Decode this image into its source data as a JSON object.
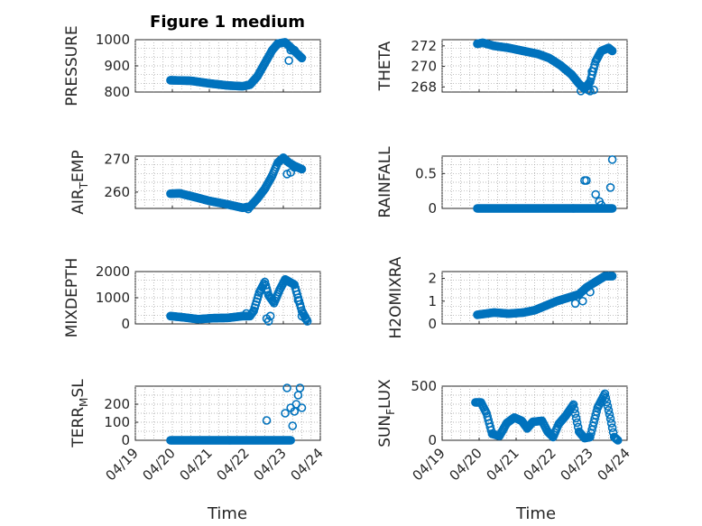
{
  "figure": {
    "title": "Figure 1 medium",
    "xlabel": "Time",
    "xticks": [
      "04/19",
      "04/20",
      "04/21",
      "04/22",
      "04/23",
      "04/24"
    ]
  },
  "chart_data": [
    {
      "type": "scatter",
      "ylabel": "PRESSURE",
      "ylim": [
        800,
        1000
      ],
      "yticks": [
        800,
        900,
        1000
      ],
      "ytick_labels": [
        "800",
        "900",
        "1000"
      ],
      "xlim": [
        0,
        5
      ],
      "grid": true,
      "marker_color": "#0072BD",
      "anchors": [
        [
          0.95,
          845
        ],
        [
          1.5,
          843
        ],
        [
          2.0,
          833
        ],
        [
          2.5,
          825
        ],
        [
          2.9,
          822
        ],
        [
          3.1,
          828
        ],
        [
          3.3,
          860
        ],
        [
          3.5,
          910
        ],
        [
          3.7,
          960
        ],
        [
          3.85,
          985
        ],
        [
          4.05,
          990
        ],
        [
          4.2,
          970
        ],
        [
          4.35,
          950
        ],
        [
          4.5,
          930
        ]
      ],
      "extra": [
        [
          4.15,
          920
        ],
        [
          4.2,
          960
        ],
        [
          4.3,
          960
        ]
      ]
    },
    {
      "type": "scatter",
      "ylabel": "THETA",
      "ylim": [
        267.5,
        272.6
      ],
      "yticks": [
        268,
        270,
        272
      ],
      "ytick_labels": [
        "268",
        "270",
        "272"
      ],
      "xlim": [
        0,
        5
      ],
      "grid": true,
      "marker_color": "#0072BD",
      "anchors": [
        [
          0.95,
          272.2
        ],
        [
          1.1,
          272.3
        ],
        [
          1.4,
          272.0
        ],
        [
          1.8,
          271.8
        ],
        [
          2.2,
          271.5
        ],
        [
          2.6,
          271.2
        ],
        [
          2.9,
          270.8
        ],
        [
          3.2,
          270.1
        ],
        [
          3.5,
          269.2
        ],
        [
          3.7,
          268.3
        ],
        [
          3.85,
          267.8
        ],
        [
          4.0,
          268.5
        ],
        [
          4.15,
          270.5
        ],
        [
          4.3,
          271.5
        ],
        [
          4.5,
          271.8
        ],
        [
          4.6,
          271.5
        ]
      ],
      "extra": [
        [
          3.75,
          267.6
        ],
        [
          3.9,
          268.1
        ],
        [
          3.95,
          267.7
        ],
        [
          4.0,
          267.6
        ],
        [
          4.05,
          269.5
        ],
        [
          4.1,
          267.7
        ]
      ]
    },
    {
      "type": "scatter",
      "ylabel": "AIR_TEMP",
      "ylabel_parts": [
        "AIR",
        "T",
        "EMP"
      ],
      "ylim": [
        255,
        271
      ],
      "yticks": [
        260,
        270
      ],
      "ytick_labels": [
        "260",
        "270"
      ],
      "xlim": [
        0,
        5
      ],
      "grid": true,
      "marker_color": "#0072BD",
      "anchors": [
        [
          0.95,
          259.5
        ],
        [
          1.2,
          259.6
        ],
        [
          1.6,
          258.5
        ],
        [
          2.0,
          257.3
        ],
        [
          2.5,
          256.2
        ],
        [
          2.9,
          255.2
        ],
        [
          3.1,
          255.5
        ],
        [
          3.3,
          258
        ],
        [
          3.5,
          261
        ],
        [
          3.7,
          265
        ],
        [
          3.85,
          269
        ],
        [
          4.0,
          270.5
        ],
        [
          4.15,
          269
        ],
        [
          4.3,
          268
        ],
        [
          4.5,
          267
        ]
      ],
      "extra": [
        [
          3.05,
          254.8
        ],
        [
          4.1,
          265.5
        ],
        [
          4.2,
          266
        ],
        [
          4.3,
          267.5
        ]
      ]
    },
    {
      "type": "scatter",
      "ylabel": "RAINFALL",
      "ylim": [
        0,
        0.75
      ],
      "yticks": [
        0,
        0.5
      ],
      "ytick_labels": [
        "0",
        "0.5"
      ],
      "xlim": [
        0,
        5
      ],
      "grid": true,
      "marker_color": "#0072BD",
      "anchors": [
        [
          0.95,
          0
        ],
        [
          4.6,
          0
        ]
      ],
      "extra": [
        [
          3.85,
          0.4
        ],
        [
          3.9,
          0.4
        ],
        [
          4.15,
          0.2
        ],
        [
          4.25,
          0.1
        ],
        [
          4.3,
          0.05
        ],
        [
          4.55,
          0.3
        ],
        [
          4.6,
          0.7
        ]
      ]
    },
    {
      "type": "scatter",
      "ylabel": "MIXDEPTH",
      "ylim": [
        0,
        2000
      ],
      "yticks": [
        0,
        1000,
        2000
      ],
      "ytick_labels": [
        "0",
        "1000",
        "2000"
      ],
      "xlim": [
        0,
        5
      ],
      "grid": true,
      "marker_color": "#0072BD",
      "anchors": [
        [
          0.95,
          300
        ],
        [
          1.3,
          250
        ],
        [
          1.7,
          180
        ],
        [
          2.1,
          220
        ],
        [
          2.5,
          230
        ],
        [
          2.9,
          300
        ],
        [
          3.1,
          300
        ],
        [
          3.2,
          500
        ],
        [
          3.35,
          1200
        ],
        [
          3.5,
          1600
        ],
        [
          3.6,
          1100
        ],
        [
          3.75,
          800
        ],
        [
          3.9,
          1300
        ],
        [
          4.05,
          1700
        ],
        [
          4.3,
          1500
        ],
        [
          4.5,
          500
        ],
        [
          4.65,
          100
        ]
      ],
      "extra": [
        [
          3.0,
          400
        ],
        [
          3.55,
          200
        ],
        [
          3.6,
          100
        ],
        [
          3.65,
          300
        ],
        [
          4.4,
          900
        ],
        [
          4.5,
          300
        ],
        [
          4.6,
          200
        ]
      ]
    },
    {
      "type": "scatter",
      "ylabel": "H2OMIXRA",
      "ylim": [
        0,
        2.3
      ],
      "yticks": [
        0,
        1,
        2
      ],
      "ytick_labels": [
        "0",
        "1",
        "2"
      ],
      "xlim": [
        0,
        5
      ],
      "grid": true,
      "marker_color": "#0072BD",
      "anchors": [
        [
          0.95,
          0.4
        ],
        [
          1.4,
          0.5
        ],
        [
          1.8,
          0.45
        ],
        [
          2.2,
          0.5
        ],
        [
          2.5,
          0.6
        ],
        [
          2.8,
          0.8
        ],
        [
          3.1,
          1.0
        ],
        [
          3.4,
          1.15
        ],
        [
          3.7,
          1.3
        ],
        [
          3.9,
          1.6
        ],
        [
          4.2,
          1.9
        ],
        [
          4.4,
          2.1
        ],
        [
          4.6,
          2.1
        ]
      ],
      "extra": [
        [
          3.6,
          0.9
        ],
        [
          3.8,
          1.0
        ],
        [
          4.0,
          1.4
        ]
      ]
    },
    {
      "type": "scatter",
      "ylabel": "TERR_MSL",
      "ylabel_parts": [
        "TERR",
        "M",
        "SL"
      ],
      "ylim": [
        0,
        300
      ],
      "yticks": [
        0,
        100,
        200
      ],
      "ytick_labels": [
        "0",
        "100",
        "200"
      ],
      "xlim": [
        0,
        5
      ],
      "grid": true,
      "marker_color": "#0072BD",
      "anchors": [
        [
          0.95,
          0
        ],
        [
          4.2,
          0
        ]
      ],
      "extra": [
        [
          3.55,
          110
        ],
        [
          4.05,
          150
        ],
        [
          4.1,
          290
        ],
        [
          4.2,
          180
        ],
        [
          4.25,
          80
        ],
        [
          4.3,
          160
        ],
        [
          4.35,
          200
        ],
        [
          4.4,
          250
        ],
        [
          4.45,
          290
        ],
        [
          4.5,
          180
        ]
      ]
    },
    {
      "type": "scatter",
      "ylabel": "SUN_FLUX",
      "ylabel_parts": [
        "SUN",
        "F",
        "LUX"
      ],
      "ylim": [
        0,
        500
      ],
      "yticks": [
        0,
        500
      ],
      "ytick_labels": [
        "0",
        "500"
      ],
      "xlim": [
        0,
        5
      ],
      "grid": true,
      "marker_color": "#0072BD",
      "anchors": [
        [
          0.9,
          350
        ],
        [
          1.05,
          350
        ],
        [
          1.2,
          250
        ],
        [
          1.35,
          60
        ],
        [
          1.55,
          40
        ],
        [
          1.75,
          160
        ],
        [
          1.95,
          210
        ],
        [
          2.15,
          180
        ],
        [
          2.3,
          110
        ],
        [
          2.45,
          170
        ],
        [
          2.7,
          180
        ],
        [
          2.85,
          80
        ],
        [
          3.0,
          30
        ],
        [
          3.15,
          150
        ],
        [
          3.35,
          230
        ],
        [
          3.55,
          330
        ],
        [
          3.7,
          80
        ],
        [
          3.85,
          20
        ],
        [
          4.0,
          30
        ],
        [
          4.2,
          300
        ],
        [
          4.4,
          430
        ],
        [
          4.55,
          200
        ],
        [
          4.65,
          30
        ],
        [
          4.75,
          0
        ]
      ],
      "extra": []
    }
  ]
}
